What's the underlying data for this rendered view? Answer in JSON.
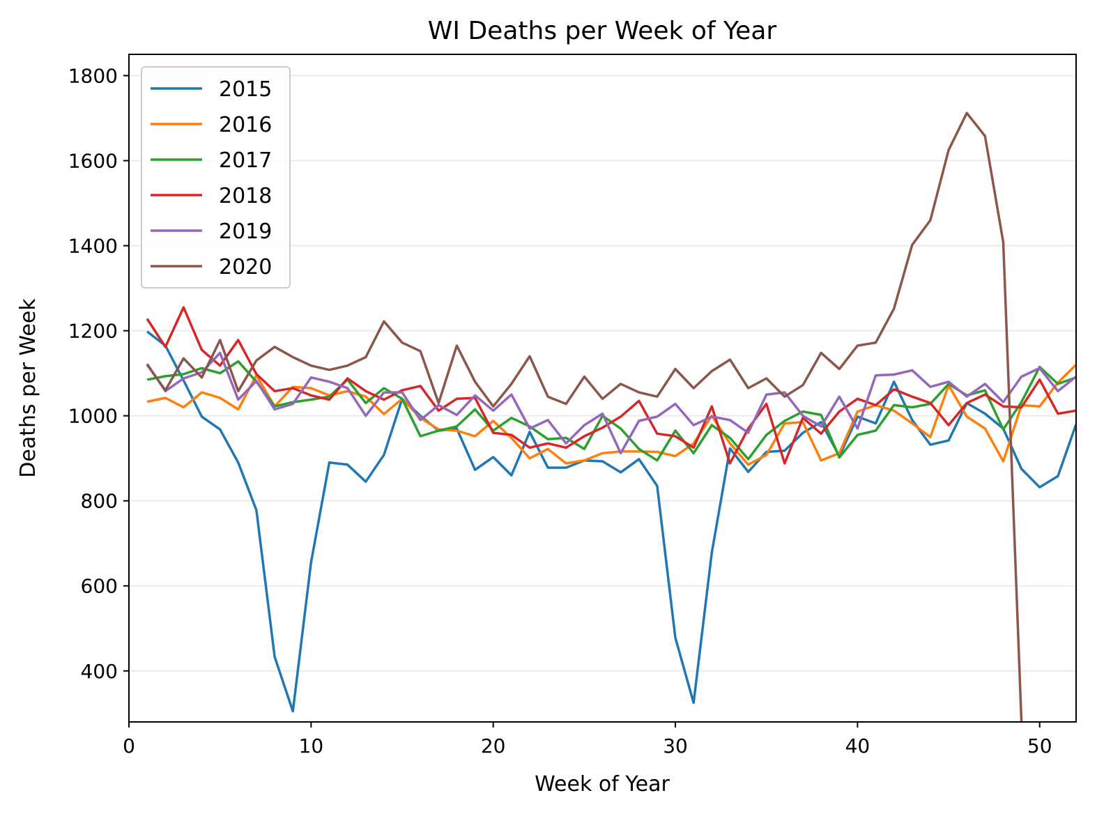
{
  "chart_data": {
    "type": "line",
    "title": "WI Deaths per Week of Year",
    "xlabel": "Week of Year",
    "ylabel": "Deaths per Week",
    "xlim": [
      0,
      52
    ],
    "ylim": [
      280,
      1850
    ],
    "xticks": [
      "0",
      "10",
      "20",
      "30",
      "40",
      "50"
    ],
    "yticks": [
      "400",
      "600",
      "800",
      "1000",
      "1200",
      "1400",
      "1600",
      "1800"
    ],
    "grid": "horizontal",
    "legend": "top-left",
    "x": [
      1,
      2,
      3,
      4,
      5,
      6,
      7,
      8,
      9,
      10,
      11,
      12,
      13,
      14,
      15,
      16,
      17,
      18,
      19,
      20,
      21,
      22,
      23,
      24,
      25,
      26,
      27,
      28,
      29,
      30,
      31,
      32,
      33,
      34,
      35,
      36,
      37,
      38,
      39,
      40,
      41,
      42,
      43,
      44,
      45,
      46,
      47,
      48,
      49,
      50,
      51,
      52
    ],
    "series": [
      {
        "name": "2015",
        "color": "#1f77b4",
        "values": [
          1198,
          1165,
          1083,
          998,
          968,
          890,
          778,
          433,
          305,
          655,
          890,
          885,
          845,
          908,
          1040,
          1000,
          965,
          970,
          873,
          903,
          860,
          962,
          878,
          878,
          895,
          893,
          867,
          898,
          835,
          478,
          325,
          678,
          923,
          868,
          915,
          918,
          960,
          985,
          905,
          998,
          982,
          1080,
          990,
          932,
          942,
          1030,
          1005,
          970,
          875,
          832,
          858,
          980
        ]
      },
      {
        "name": "2016",
        "color": "#ff7f0e",
        "values": [
          1033,
          1042,
          1020,
          1055,
          1042,
          1015,
          1095,
          1022,
          1068,
          1065,
          1048,
          1058,
          1045,
          1004,
          1040,
          995,
          968,
          965,
          952,
          988,
          948,
          900,
          922,
          888,
          895,
          912,
          916,
          916,
          915,
          905,
          935,
          1000,
          935,
          885,
          908,
          982,
          985,
          895,
          912,
          1010,
          1025,
          1012,
          982,
          950,
          1072,
          998,
          970,
          893,
          1025,
          1022,
          1078,
          1120
        ]
      },
      {
        "name": "2017",
        "color": "#2ca02c",
        "values": [
          1085,
          1093,
          1098,
          1112,
          1100,
          1128,
          1080,
          1022,
          1032,
          1038,
          1045,
          1085,
          1030,
          1065,
          1040,
          952,
          965,
          975,
          1015,
          965,
          995,
          975,
          945,
          948,
          922,
          1000,
          970,
          922,
          895,
          965,
          912,
          978,
          948,
          898,
          955,
          988,
          1010,
          1002,
          902,
          955,
          965,
          1025,
          1020,
          1028,
          1075,
          1048,
          1060,
          968,
          1032,
          1115,
          1075,
          1090
        ]
      },
      {
        "name": "2018",
        "color": "#d62728",
        "values": [
          1228,
          1162,
          1255,
          1155,
          1118,
          1178,
          1098,
          1058,
          1065,
          1048,
          1038,
          1088,
          1058,
          1038,
          1060,
          1070,
          1012,
          1040,
          1042,
          960,
          955,
          925,
          935,
          925,
          952,
          972,
          998,
          1035,
          958,
          952,
          925,
          1022,
          888,
          970,
          1028,
          888,
          995,
          958,
          1010,
          1040,
          1025,
          1062,
          1045,
          1030,
          978,
          1030,
          1050,
          1022,
          1020,
          1085,
          1005,
          1012
        ]
      },
      {
        "name": "2019",
        "color": "#9467bd",
        "values": [
          1122,
          1058,
          1088,
          1102,
          1148,
          1038,
          1082,
          1015,
          1028,
          1090,
          1080,
          1065,
          1000,
          1055,
          1055,
          990,
          1025,
          1002,
          1048,
          1012,
          1050,
          970,
          990,
          935,
          978,
          1005,
          912,
          988,
          998,
          1028,
          978,
          998,
          990,
          960,
          1050,
          1055,
          1000,
          975,
          1045,
          970,
          1095,
          1097,
          1107,
          1068,
          1080,
          1045,
          1075,
          1032,
          1092,
          1112,
          1058,
          1092
        ]
      },
      {
        "name": "2020",
        "color": "#8c564b",
        "values": [
          1120,
          1060,
          1135,
          1090,
          1178,
          1058,
          1130,
          1162,
          1138,
          1118,
          1108,
          1118,
          1138,
          1222,
          1172,
          1152,
          1030,
          1165,
          1080,
          1022,
          1075,
          1140,
          1045,
          1028,
          1092,
          1040,
          1075,
          1055,
          1045,
          1110,
          1065,
          1105,
          1132,
          1065,
          1088,
          1045,
          1072,
          1148,
          1110,
          1165,
          1172,
          1252,
          1402,
          1460,
          1625,
          1712,
          1658,
          1408,
          280,
          null,
          null,
          null
        ]
      }
    ]
  }
}
